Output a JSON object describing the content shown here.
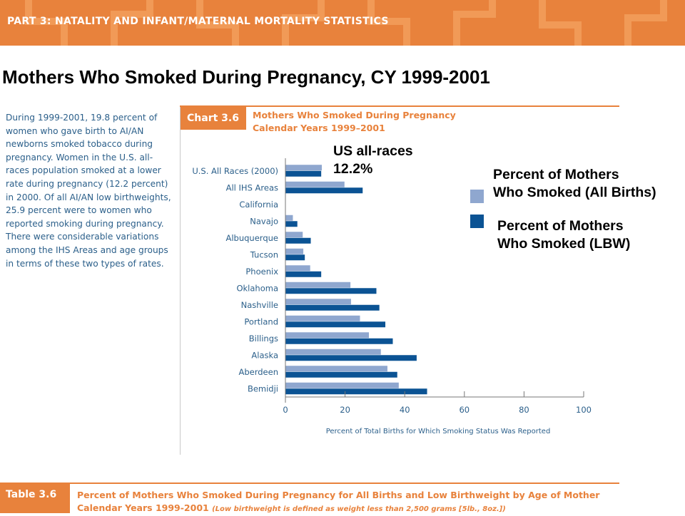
{
  "header": {
    "banner_text": "PART 3: NATALITY AND INFANT/MATERNAL MORTALITY STATISTICS",
    "slide_title": "Mothers Who Smoked During Pregnancy, CY 1999-2001"
  },
  "intro_text": "During 1999-2001, 19.8 percent of women who gave birth to AI/AN newborns smoked tobacco during pregnancy. Women in the U.S. all-races population smoked at a lower rate during pregnancy (12.2 percent) in 2000. Of all AI/AN low birthweights, 25.9 percent were to women who reported smoking during pregnancy. There were considerable variations among the IHS Areas and age groups in terms of these two types of rates.",
  "chart": {
    "badge": "Chart 3.6",
    "title_line1": "Mothers Who Smoked During Pregnancy",
    "title_line2": "Calendar Years 1999–2001"
  },
  "annotations": {
    "us_all_races": "US all-races\n12.2%",
    "legend_all_births": "Percent of Mothers\nWho Smoked (All Births)",
    "legend_lbw": "Percent of Mothers\nWho Smoked (LBW)"
  },
  "colors": {
    "all_births": "#8fa7cf",
    "lbw": "#0b5394",
    "accent": "#e8823c",
    "label_text": "#2b5f8a"
  },
  "table": {
    "badge": "Table 3.6",
    "title_line1": "Percent of Mothers Who Smoked During Pregnancy for All Births and Low Birthweight by Age of Mother",
    "title_line2": "Calendar Years 1999-2001",
    "title_note": "(Low birthweight is defined as weight less than 2,500 grams [5lb., 8oz.])"
  },
  "chart_data": {
    "type": "bar",
    "orientation": "horizontal",
    "categories": [
      "U.S. All Races (2000)",
      "All IHS Areas",
      "California",
      "Navajo",
      "Albuquerque",
      "Tucson",
      "Phoenix",
      "Oklahoma",
      "Nashville",
      "Portland",
      "Billings",
      "Alaska",
      "Aberdeen",
      "Bemidji"
    ],
    "series": [
      {
        "name": "Percent of Mothers Who Smoked (All Births)",
        "values": [
          12.2,
          19.8,
          0,
          2.5,
          5.8,
          6.0,
          8.3,
          21.8,
          22.0,
          25.0,
          28.0,
          32.0,
          34.2,
          38.0
        ]
      },
      {
        "name": "Percent of Mothers Who Smoked (LBW)",
        "values": [
          12.0,
          25.9,
          0,
          4.0,
          8.5,
          6.5,
          12.0,
          30.5,
          31.5,
          33.5,
          36.0,
          44.0,
          37.5,
          47.5
        ]
      }
    ],
    "xlim": [
      0,
      100
    ],
    "xticks": [
      0,
      20,
      40,
      60,
      80,
      100
    ],
    "xlabel": "Percent of Total Births for Which Smoking Status Was Reported",
    "legend": "right",
    "grid": false
  }
}
